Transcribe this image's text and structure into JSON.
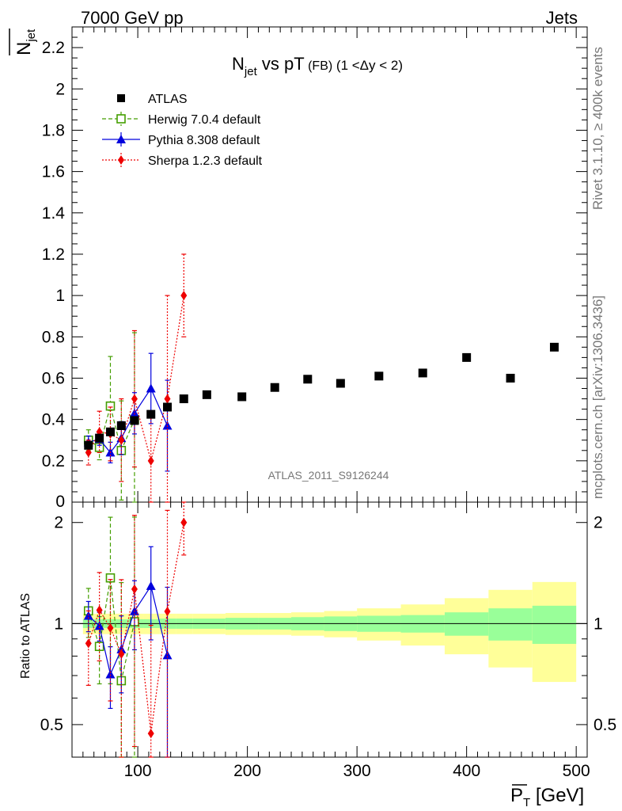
{
  "header": {
    "left": "7000 GeV pp",
    "right": "Jets"
  },
  "side_labels": {
    "top": "Rivet 3.1.10, ≥ 400k events",
    "bottom": "mcplots.cern.ch [arXiv:1306.3436]"
  },
  "watermark": "ATLAS_2011_S9126244",
  "chart_data": {
    "type": "scatter",
    "title_main": "N",
    "title_sub": "jet",
    "title_rest": " vs pT",
    "title_fb": " (FB)",
    "title_range": " (1 <Δy < 2)",
    "xlabel_main": "P",
    "xlabel_sub": "T",
    "xlabel_unit": " [GeV]",
    "ylabel_main": "N",
    "ylabel_sub": "jet",
    "ratio_ylabel": "Ratio to ATLAS",
    "xlim": [
      40,
      510
    ],
    "ylim_main": [
      0,
      2.3
    ],
    "ylim_ratio": [
      0.4,
      2.3
    ],
    "ratio_log_scale": true,
    "x_ticks": [
      100,
      200,
      300,
      400,
      500
    ],
    "x_tick_labels": [
      "100",
      "200",
      "300",
      "400",
      "500"
    ],
    "y_ticks_main": [
      0.2,
      0.4,
      0.6,
      0.8,
      1.0,
      1.2,
      1.4,
      1.6,
      1.8,
      2.0,
      2.2
    ],
    "y_tick_labels_main": [
      "0.2",
      "0.4",
      "0.6",
      "0.8",
      "1",
      "1.2",
      "1.4",
      "1.6",
      "1.8",
      "2",
      "2.2"
    ],
    "y_zero_label": "0",
    "y_ticks_ratio": [
      0.5,
      1,
      2
    ],
    "y_tick_labels_ratio": [
      "0.5",
      "1",
      "2"
    ],
    "legend_position": "top-left",
    "data": {
      "name": "ATLAS",
      "color": "#000000",
      "x": [
        55,
        65,
        75,
        85,
        97,
        112,
        127,
        142,
        163,
        195,
        225,
        255,
        285,
        320,
        360,
        400,
        440,
        480
      ],
      "y": [
        0.275,
        0.31,
        0.34,
        0.37,
        0.395,
        0.425,
        0.46,
        0.5,
        0.52,
        0.51,
        0.555,
        0.595,
        0.575,
        0.61,
        0.625,
        0.7,
        0.6,
        0.75
      ],
      "band_x_edges": [
        50,
        60,
        70,
        80,
        90,
        105,
        120,
        135,
        150,
        180,
        210,
        240,
        270,
        300,
        340,
        380,
        420,
        460,
        500
      ],
      "ratio_err_inner": [
        0.03,
        0.03,
        0.03,
        0.03,
        0.03,
        0.03,
        0.035,
        0.035,
        0.035,
        0.04,
        0.04,
        0.045,
        0.05,
        0.055,
        0.06,
        0.08,
        0.11,
        0.13
      ],
      "ratio_err_outer": [
        0.07,
        0.07,
        0.07,
        0.07,
        0.07,
        0.07,
        0.07,
        0.07,
        0.07,
        0.075,
        0.075,
        0.08,
        0.09,
        0.11,
        0.14,
        0.19,
        0.26,
        0.33
      ]
    },
    "series": [
      {
        "name": "Herwig 7.0.4 default",
        "color": "#449e00",
        "x": [
          55,
          65,
          75,
          85,
          97
        ],
        "y": [
          0.3,
          0.265,
          0.465,
          0.25,
          0.4
        ],
        "err": [
          0.05,
          0.06,
          0.24,
          0.24,
          0.42
        ]
      },
      {
        "name": "Pythia 8.308 default",
        "color": "#0000dd",
        "x": [
          55,
          65,
          75,
          85,
          97,
          112,
          127
        ],
        "y": [
          0.29,
          0.305,
          0.24,
          0.31,
          0.43,
          0.55,
          0.37
        ],
        "err": [
          0.03,
          0.03,
          0.05,
          0.08,
          0.1,
          0.17,
          0.22
        ]
      },
      {
        "name": "Sherpa 1.2.3 default",
        "color": "#ee0000",
        "x": [
          55,
          65,
          75,
          85,
          97,
          112,
          127,
          142
        ],
        "y": [
          0.24,
          0.34,
          0.33,
          0.3,
          0.5,
          0.2,
          0.5,
          1.0
        ],
        "err": [
          0.06,
          0.1,
          0.13,
          0.2,
          0.33,
          0.22,
          0.5,
          0.2
        ]
      }
    ]
  }
}
